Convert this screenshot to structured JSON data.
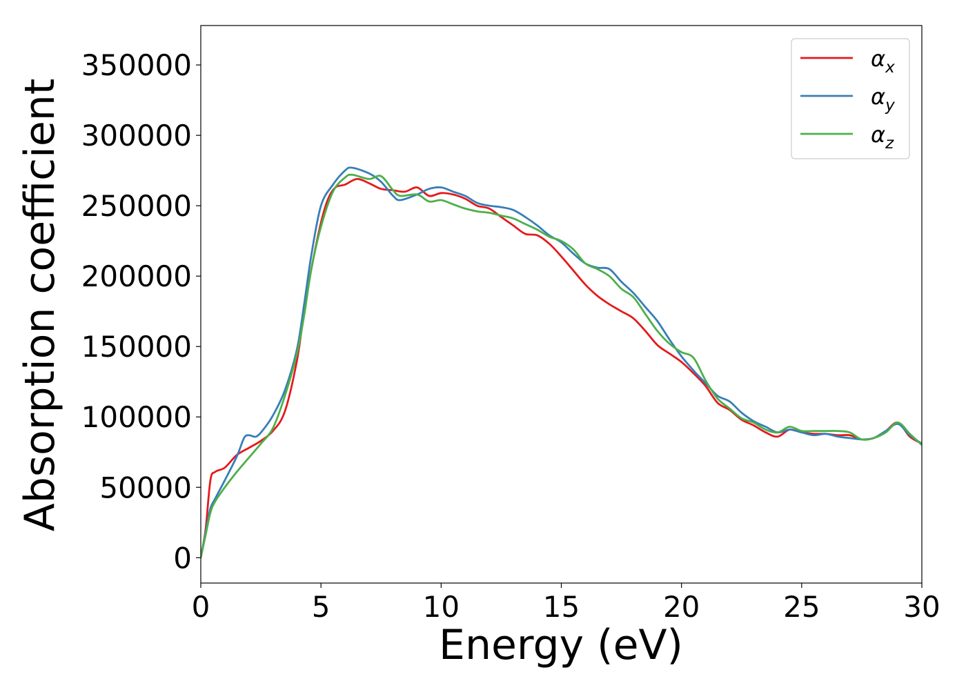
{
  "chart_data": {
    "type": "line",
    "xlabel": "Energy (eV)",
    "ylabel": "Absorption coefficient",
    "xlim": [
      0,
      30
    ],
    "ylim": [
      -18000,
      378000
    ],
    "xticks": [
      0,
      5,
      10,
      15,
      20,
      25,
      30
    ],
    "yticks": [
      0,
      50000,
      100000,
      150000,
      200000,
      250000,
      300000,
      350000
    ],
    "grid": false,
    "legend_position": "top-right",
    "series": [
      {
        "name": "αx",
        "base": "α",
        "sub": "x",
        "color": "#e41a1c",
        "points": [
          [
            0,
            0
          ],
          [
            0.2,
            20000
          ],
          [
            0.4,
            55000
          ],
          [
            0.6,
            61000
          ],
          [
            1,
            64000
          ],
          [
            1.5,
            73000
          ],
          [
            2,
            78000
          ],
          [
            2.5,
            83000
          ],
          [
            3,
            90000
          ],
          [
            3.5,
            104000
          ],
          [
            4,
            140000
          ],
          [
            4.3,
            175000
          ],
          [
            4.6,
            205000
          ],
          [
            5,
            238000
          ],
          [
            5.3,
            255000
          ],
          [
            5.6,
            263000
          ],
          [
            6,
            265000
          ],
          [
            6.5,
            269000
          ],
          [
            7,
            266000
          ],
          [
            7.5,
            262000
          ],
          [
            8,
            261000
          ],
          [
            8.5,
            260000
          ],
          [
            9,
            263000
          ],
          [
            9.5,
            257000
          ],
          [
            10,
            259000
          ],
          [
            10.5,
            258000
          ],
          [
            11,
            255000
          ],
          [
            11.5,
            250000
          ],
          [
            12,
            248000
          ],
          [
            12.5,
            242000
          ],
          [
            13,
            236000
          ],
          [
            13.5,
            230000
          ],
          [
            14,
            229000
          ],
          [
            14.5,
            223000
          ],
          [
            15,
            214000
          ],
          [
            15.5,
            204000
          ],
          [
            16,
            194000
          ],
          [
            16.5,
            186000
          ],
          [
            17,
            180000
          ],
          [
            17.5,
            175000
          ],
          [
            18,
            170000
          ],
          [
            18.5,
            161000
          ],
          [
            19,
            151000
          ],
          [
            19.5,
            145000
          ],
          [
            20,
            139000
          ],
          [
            20.5,
            131000
          ],
          [
            21,
            122000
          ],
          [
            21.5,
            110000
          ],
          [
            22,
            105000
          ],
          [
            22.5,
            98000
          ],
          [
            23,
            94000
          ],
          [
            23.5,
            89000
          ],
          [
            24,
            86000
          ],
          [
            24.5,
            91000
          ],
          [
            25,
            89000
          ],
          [
            25.5,
            88000
          ],
          [
            26,
            88000
          ],
          [
            26.5,
            87000
          ],
          [
            27,
            87000
          ],
          [
            27.5,
            84000
          ],
          [
            28,
            85000
          ],
          [
            28.5,
            90000
          ],
          [
            29,
            96000
          ],
          [
            29.5,
            86000
          ],
          [
            30,
            81000
          ]
        ]
      },
      {
        "name": "αy",
        "base": "α",
        "sub": "y",
        "color": "#377eb8",
        "points": [
          [
            0,
            0
          ],
          [
            0.2,
            18000
          ],
          [
            0.4,
            35000
          ],
          [
            0.6,
            42000
          ],
          [
            1,
            55000
          ],
          [
            1.5,
            72000
          ],
          [
            1.8,
            85000
          ],
          [
            2,
            87000
          ],
          [
            2.3,
            86000
          ],
          [
            2.6,
            91000
          ],
          [
            3,
            101000
          ],
          [
            3.5,
            119000
          ],
          [
            4,
            148000
          ],
          [
            4.3,
            180000
          ],
          [
            4.6,
            215000
          ],
          [
            5,
            250000
          ],
          [
            5.5,
            265000
          ],
          [
            6,
            275000
          ],
          [
            6.3,
            277000
          ],
          [
            7,
            273000
          ],
          [
            7.5,
            267000
          ],
          [
            8,
            257000
          ],
          [
            8.3,
            254000
          ],
          [
            9,
            258000
          ],
          [
            9.5,
            262000
          ],
          [
            10,
            263000
          ],
          [
            10.5,
            260000
          ],
          [
            11,
            257000
          ],
          [
            11.5,
            252000
          ],
          [
            12,
            250000
          ],
          [
            12.5,
            249000
          ],
          [
            13,
            247000
          ],
          [
            13.5,
            242000
          ],
          [
            14,
            236000
          ],
          [
            14.5,
            229000
          ],
          [
            15,
            224000
          ],
          [
            15.5,
            216000
          ],
          [
            16,
            209000
          ],
          [
            16.5,
            206000
          ],
          [
            17,
            205000
          ],
          [
            17.5,
            196000
          ],
          [
            18,
            188000
          ],
          [
            18.5,
            178000
          ],
          [
            19,
            168000
          ],
          [
            19.5,
            155000
          ],
          [
            20,
            143000
          ],
          [
            20.5,
            133000
          ],
          [
            21,
            124000
          ],
          [
            21.5,
            115000
          ],
          [
            22,
            111000
          ],
          [
            22.5,
            103000
          ],
          [
            23,
            97000
          ],
          [
            23.5,
            93000
          ],
          [
            24,
            89000
          ],
          [
            24.5,
            91000
          ],
          [
            25,
            89000
          ],
          [
            25.5,
            87000
          ],
          [
            26,
            88000
          ],
          [
            26.5,
            86000
          ],
          [
            27,
            85000
          ],
          [
            27.5,
            84000
          ],
          [
            28,
            85000
          ],
          [
            28.5,
            90000
          ],
          [
            29,
            95000
          ],
          [
            29.5,
            87000
          ],
          [
            30,
            81000
          ]
        ]
      },
      {
        "name": "αz",
        "base": "α",
        "sub": "z",
        "color": "#4daf4a",
        "points": [
          [
            0,
            0
          ],
          [
            0.2,
            16000
          ],
          [
            0.4,
            32000
          ],
          [
            0.6,
            40000
          ],
          [
            1,
            50000
          ],
          [
            1.5,
            61000
          ],
          [
            2,
            71000
          ],
          [
            2.5,
            81000
          ],
          [
            3,
            92000
          ],
          [
            3.5,
            115000
          ],
          [
            4,
            145000
          ],
          [
            4.3,
            172000
          ],
          [
            4.6,
            205000
          ],
          [
            5,
            235000
          ],
          [
            5.5,
            260000
          ],
          [
            6,
            270000
          ],
          [
            6.3,
            272000
          ],
          [
            7,
            269000
          ],
          [
            7.5,
            271000
          ],
          [
            8,
            261000
          ],
          [
            8.3,
            257000
          ],
          [
            9,
            258000
          ],
          [
            9.5,
            253000
          ],
          [
            10,
            254000
          ],
          [
            10.5,
            251000
          ],
          [
            11,
            248000
          ],
          [
            11.5,
            246000
          ],
          [
            12,
            245000
          ],
          [
            12.5,
            243000
          ],
          [
            13,
            241000
          ],
          [
            13.5,
            237000
          ],
          [
            14,
            233000
          ],
          [
            14.5,
            228000
          ],
          [
            15,
            225000
          ],
          [
            15.5,
            219000
          ],
          [
            16,
            209000
          ],
          [
            16.5,
            205000
          ],
          [
            17,
            200000
          ],
          [
            17.5,
            191000
          ],
          [
            18,
            185000
          ],
          [
            18.5,
            173000
          ],
          [
            19,
            161000
          ],
          [
            19.5,
            152000
          ],
          [
            20,
            146000
          ],
          [
            20.5,
            142000
          ],
          [
            21,
            126000
          ],
          [
            21.5,
            113000
          ],
          [
            22,
            106000
          ],
          [
            22.5,
            99000
          ],
          [
            23,
            96000
          ],
          [
            23.5,
            91000
          ],
          [
            24,
            89000
          ],
          [
            24.5,
            93000
          ],
          [
            25,
            90000
          ],
          [
            25.5,
            90000
          ],
          [
            26,
            90000
          ],
          [
            26.5,
            90000
          ],
          [
            27,
            89000
          ],
          [
            27.5,
            84000
          ],
          [
            28,
            85000
          ],
          [
            28.5,
            89000
          ],
          [
            29,
            96000
          ],
          [
            29.5,
            88000
          ],
          [
            30,
            80000
          ]
        ]
      }
    ]
  }
}
